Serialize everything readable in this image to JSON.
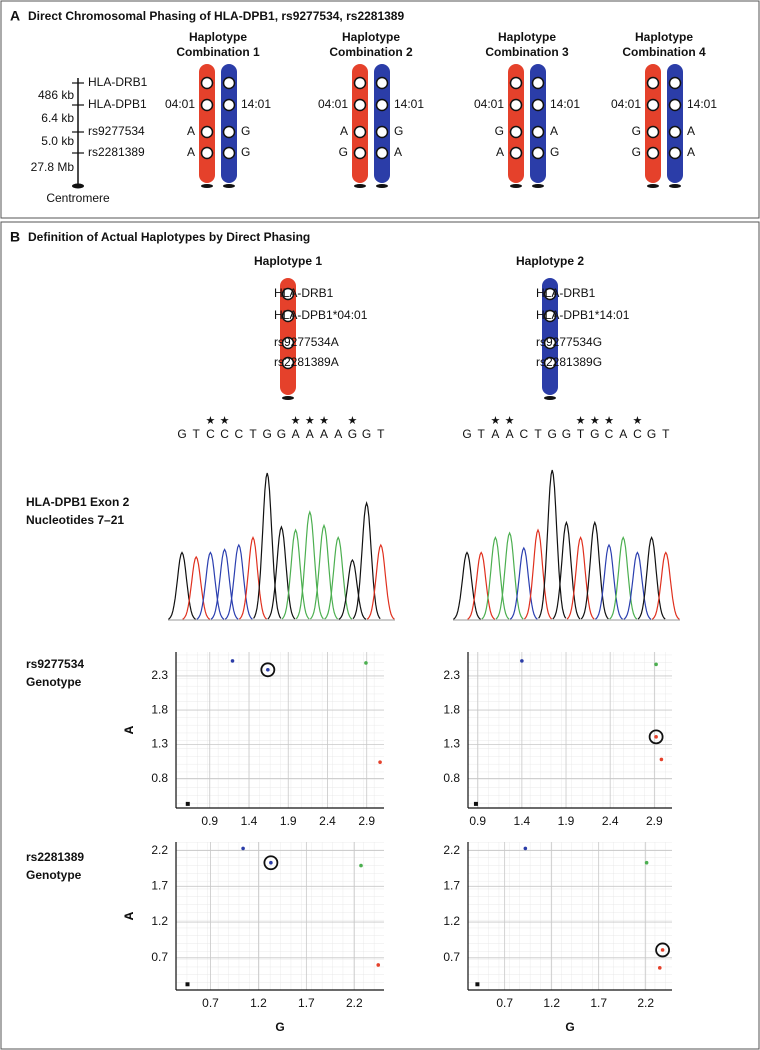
{
  "panel_a": {
    "letter": "A",
    "title": "Direct Chromosomal Phasing of HLA-DPB1, rs9277534, rs2281389",
    "loci": [
      "HLA-DRB1",
      "HLA-DPB1",
      "rs9277534",
      "rs2281389"
    ],
    "distances": [
      "486 kb",
      "6.4 kb",
      "5.0 kb",
      "27.8 Mb"
    ],
    "centromere": "Centromere",
    "chromosome_colors": [
      "#e5412b",
      "#2b3da8"
    ],
    "combinations": [
      {
        "title": [
          "Haplotype",
          "Combination 1"
        ],
        "left": [
          "04:01",
          "A",
          "A"
        ],
        "right": [
          "14:01",
          "G",
          "G"
        ]
      },
      {
        "title": [
          "Haplotype",
          "Combination 2"
        ],
        "left": [
          "04:01",
          "A",
          "G"
        ],
        "right": [
          "14:01",
          "G",
          "A"
        ]
      },
      {
        "title": [
          "Haplotype",
          "Combination 3"
        ],
        "left": [
          "04:01",
          "G",
          "A"
        ],
        "right": [
          "14:01",
          "A",
          "G"
        ]
      },
      {
        "title": [
          "Haplotype",
          "Combination 4"
        ],
        "left": [
          "04:01",
          "G",
          "G"
        ],
        "right": [
          "14:01",
          "A",
          "A"
        ]
      }
    ]
  },
  "panel_b": {
    "letter": "B",
    "title": "Definition of Actual Haplotypes by Direct Phasing",
    "base_colors": {
      "G": "#111111",
      "T": "#e0301e",
      "C": "#2b3fb0",
      "A": "#4caf50"
    },
    "trace_label": [
      "HLA-DPB1 Exon 2",
      "Nucleotides 7–21"
    ],
    "genotype_labels": [
      [
        "rs9277534",
        "Genotype"
      ],
      [
        "rs2281389",
        "Genotype"
      ]
    ],
    "haplotypes": [
      {
        "title": "Haplotype 1",
        "color": "#e5412b",
        "labels": [
          "HLA-DRB1",
          "HLA-DPB1*04:01",
          "rs9277534A",
          "rs2281389A"
        ],
        "sequence": [
          "G",
          "T",
          "C",
          "C",
          "C",
          "T",
          "G",
          "G",
          "A",
          "A",
          "A",
          "A",
          "G",
          "G",
          "T"
        ],
        "stars": [
          null,
          null,
          "★",
          "★",
          null,
          null,
          null,
          null,
          "★",
          "★",
          "★",
          null,
          "★",
          null,
          null
        ],
        "peak_heights": [
          0.45,
          0.42,
          0.45,
          0.47,
          0.5,
          0.55,
          0.98,
          0.62,
          0.6,
          0.72,
          0.63,
          0.55,
          0.4,
          0.78,
          0.5
        ]
      },
      {
        "title": "Haplotype 2",
        "color": "#2b3da8",
        "labels": [
          "HLA-DRB1",
          "HLA-DPB1*14:01",
          "rs9277534G",
          "rs2281389G"
        ],
        "sequence": [
          "G",
          "T",
          "A",
          "A",
          "C",
          "T",
          "G",
          "G",
          "T",
          "G",
          "C",
          "A",
          "C",
          "G",
          "T"
        ],
        "stars": [
          null,
          null,
          "★",
          "★",
          null,
          null,
          null,
          null,
          "★",
          "★",
          "★",
          null,
          "★",
          null,
          null
        ],
        "peak_heights": [
          0.45,
          0.45,
          0.55,
          0.58,
          0.48,
          0.6,
          1.0,
          0.65,
          0.55,
          0.65,
          0.5,
          0.55,
          0.45,
          0.55,
          0.45
        ]
      }
    ]
  },
  "chart_data": [
    {
      "type": "scatter",
      "ylabel": "A",
      "xlim": [
        0.47,
        3.12
      ],
      "ylim": [
        0.37,
        2.65
      ],
      "xticks": [
        0.9,
        1.4,
        1.9,
        2.4,
        2.9
      ],
      "yticks": [
        0.8,
        1.3,
        1.8,
        2.3
      ],
      "grid": true,
      "series": [
        {
          "color": "#2b3da8",
          "marker": "dot",
          "x": [
            1.19
          ],
          "y": [
            2.52
          ]
        },
        {
          "color": "#4caf50",
          "marker": "dot",
          "x": [
            2.89
          ],
          "y": [
            2.49
          ]
        },
        {
          "color": "#e5412b",
          "marker": "dot",
          "x": [
            3.07
          ],
          "y": [
            1.04
          ]
        },
        {
          "color": "#2b3da8",
          "marker": "circled",
          "x": [
            1.64
          ],
          "y": [
            2.39
          ]
        },
        {
          "color": "#111111",
          "marker": "square",
          "x": [
            0.62
          ],
          "y": [
            0.43
          ]
        }
      ]
    },
    {
      "type": "scatter",
      "ylabel": "A",
      "xlim": [
        0.79,
        3.1
      ],
      "ylim": [
        0.37,
        2.65
      ],
      "xticks": [
        0.9,
        1.4,
        1.9,
        2.4,
        2.9
      ],
      "yticks": [
        0.8,
        1.3,
        1.8,
        2.3
      ],
      "grid": true,
      "series": [
        {
          "color": "#2b3da8",
          "marker": "dot",
          "x": [
            1.4
          ],
          "y": [
            2.52
          ]
        },
        {
          "color": "#4caf50",
          "marker": "dot",
          "x": [
            2.92
          ],
          "y": [
            2.47
          ]
        },
        {
          "color": "#e5412b",
          "marker": "dot",
          "x": [
            2.98
          ],
          "y": [
            1.08
          ]
        },
        {
          "color": "#e5412b",
          "marker": "circled",
          "x": [
            2.92
          ],
          "y": [
            1.41
          ]
        },
        {
          "color": "#111111",
          "marker": "square",
          "x": [
            0.88
          ],
          "y": [
            0.43
          ]
        }
      ]
    },
    {
      "type": "scatter",
      "ylabel": "A",
      "xlabel": "G",
      "xlim": [
        0.34,
        2.51
      ],
      "ylim": [
        0.25,
        2.32
      ],
      "xticks": [
        0.7,
        1.2,
        1.7,
        2.2
      ],
      "yticks": [
        0.7,
        1.2,
        1.7,
        2.2
      ],
      "grid": true,
      "series": [
        {
          "color": "#2b3da8",
          "marker": "dot",
          "x": [
            1.04
          ],
          "y": [
            2.23
          ]
        },
        {
          "color": "#4caf50",
          "marker": "dot",
          "x": [
            2.27
          ],
          "y": [
            1.99
          ]
        },
        {
          "color": "#e5412b",
          "marker": "dot",
          "x": [
            2.45
          ],
          "y": [
            0.6
          ]
        },
        {
          "color": "#2b3da8",
          "marker": "circled",
          "x": [
            1.33
          ],
          "y": [
            2.03
          ]
        },
        {
          "color": "#111111",
          "marker": "square",
          "x": [
            0.46
          ],
          "y": [
            0.33
          ]
        }
      ]
    },
    {
      "type": "scatter",
      "ylabel": "A",
      "xlabel": "G",
      "xlim": [
        0.31,
        2.48
      ],
      "ylim": [
        0.25,
        2.32
      ],
      "xticks": [
        0.7,
        1.2,
        1.7,
        2.2
      ],
      "yticks": [
        0.7,
        1.2,
        1.7,
        2.2
      ],
      "grid": true,
      "series": [
        {
          "color": "#2b3da8",
          "marker": "dot",
          "x": [
            0.92
          ],
          "y": [
            2.23
          ]
        },
        {
          "color": "#4caf50",
          "marker": "dot",
          "x": [
            2.21
          ],
          "y": [
            2.03
          ]
        },
        {
          "color": "#e5412b",
          "marker": "dot",
          "x": [
            2.35
          ],
          "y": [
            0.56
          ]
        },
        {
          "color": "#e5412b",
          "marker": "circled",
          "x": [
            2.38
          ],
          "y": [
            0.81
          ]
        },
        {
          "color": "#111111",
          "marker": "square",
          "x": [
            0.41
          ],
          "y": [
            0.33
          ]
        }
      ]
    }
  ]
}
